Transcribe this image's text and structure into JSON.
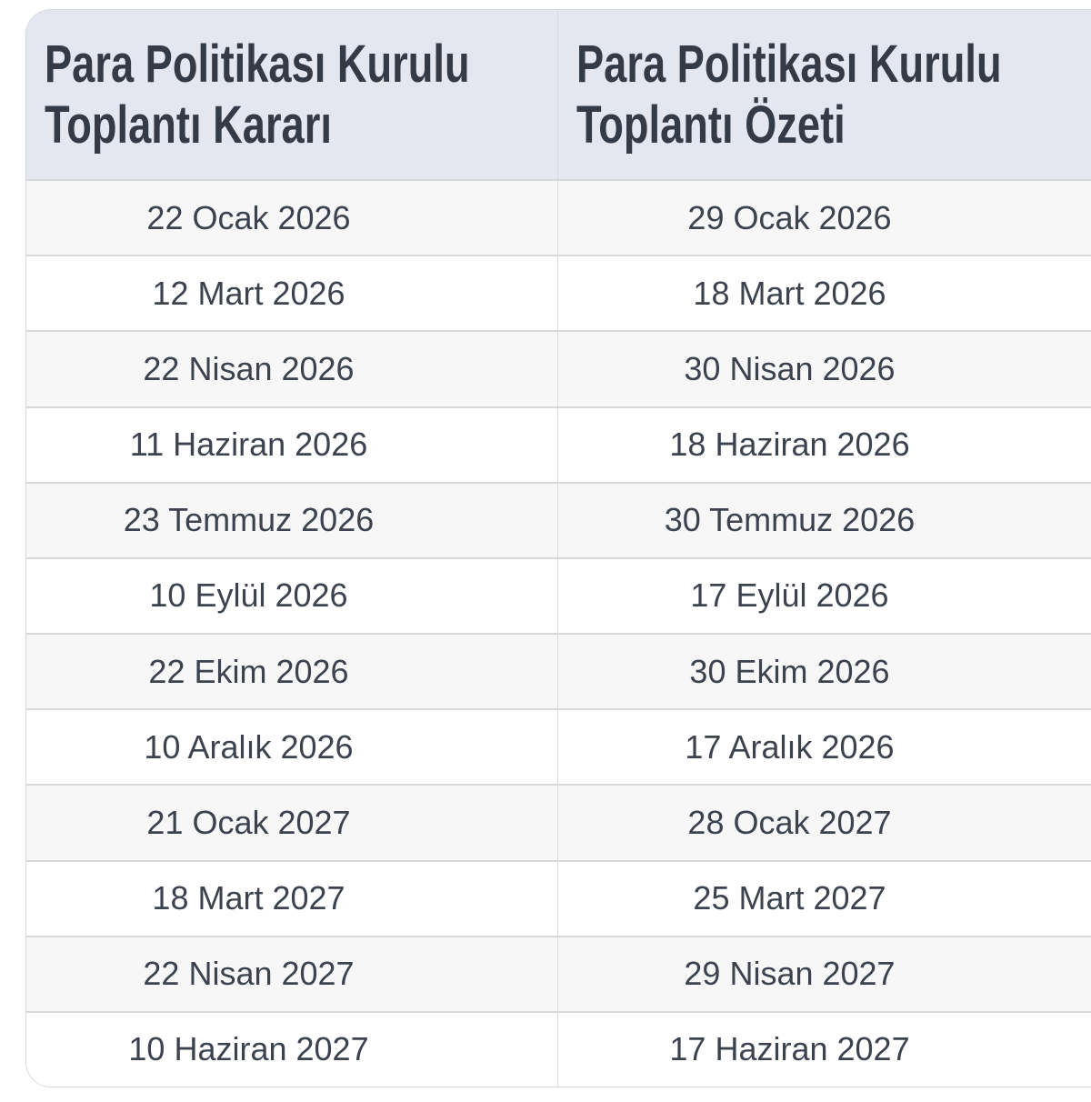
{
  "table": {
    "headers": [
      "Para Politikası Kurulu\nToplantı Kararı",
      "Para Politikası Kurulu\nToplantı Özeti"
    ],
    "rows": [
      [
        "22 Ocak 2026",
        "29 Ocak 2026"
      ],
      [
        "12 Mart 2026",
        "18 Mart 2026"
      ],
      [
        "22 Nisan 2026",
        "30 Nisan 2026"
      ],
      [
        "11 Haziran 2026",
        "18 Haziran 2026"
      ],
      [
        "23 Temmuz 2026",
        "30 Temmuz 2026"
      ],
      [
        "10 Eylül 2026",
        "17 Eylül 2026"
      ],
      [
        "22 Ekim 2026",
        "30 Ekim 2026"
      ],
      [
        "10 Aralık 2026",
        "17 Aralık 2026"
      ],
      [
        "21 Ocak 2027",
        "28 Ocak 2027"
      ],
      [
        "18 Mart 2027",
        "25 Mart 2027"
      ],
      [
        "22 Nisan 2027",
        "29 Nisan 2027"
      ],
      [
        "10 Haziran 2027",
        "17 Haziran 2027"
      ]
    ]
  },
  "colors": {
    "header_bg": "#e4e7f0",
    "header_text": "#343b47",
    "body_text": "#3c434f",
    "row_bg": "#ffffff",
    "row_alt_bg": "#f7f7f8",
    "border": "#d7d8dc",
    "divider": "#d9dbe0",
    "card_border": "#d6d8dd"
  }
}
